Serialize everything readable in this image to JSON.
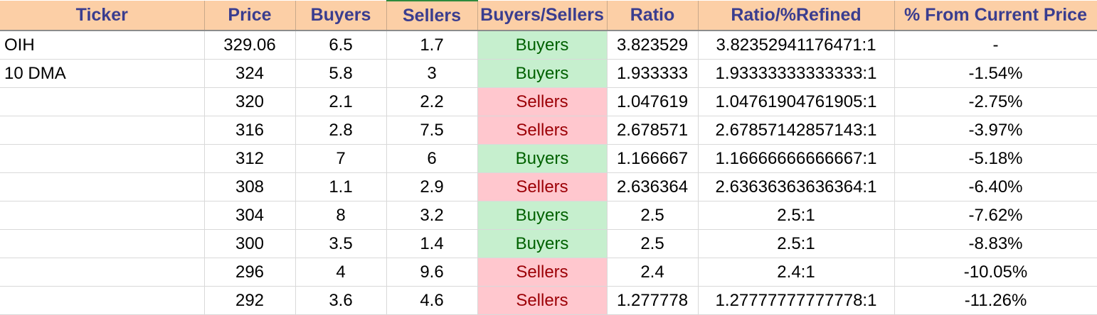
{
  "headers": [
    "Ticker",
    "Price",
    "Buyers",
    "Sellers",
    "Buyers/Sellers",
    "Ratio",
    "Ratio/%Refined",
    "% From Current Price"
  ],
  "colors": {
    "header_bg": "#fccfa6",
    "header_text": "#3a3d8f",
    "buyers_bg": "#c6efce",
    "buyers_text": "#006100",
    "sellers_bg": "#ffc7ce",
    "sellers_text": "#9c0006"
  },
  "rows": [
    {
      "ticker": "OIH",
      "price": "329.06",
      "buyers": "6.5",
      "sellers": "1.7",
      "side": "Buyers",
      "ratio": "3.823529",
      "refined": "3.82352941176471:1",
      "pct": "-"
    },
    {
      "ticker": "10 DMA",
      "price": "324",
      "buyers": "5.8",
      "sellers": "3",
      "side": "Buyers",
      "ratio": "1.933333",
      "refined": "1.93333333333333:1",
      "pct": "-1.54%"
    },
    {
      "ticker": "",
      "price": "320",
      "buyers": "2.1",
      "sellers": "2.2",
      "side": "Sellers",
      "ratio": "1.047619",
      "refined": "1.04761904761905:1",
      "pct": "-2.75%"
    },
    {
      "ticker": "",
      "price": "316",
      "buyers": "2.8",
      "sellers": "7.5",
      "side": "Sellers",
      "ratio": "2.678571",
      "refined": "2.67857142857143:1",
      "pct": "-3.97%"
    },
    {
      "ticker": "",
      "price": "312",
      "buyers": "7",
      "sellers": "6",
      "side": "Buyers",
      "ratio": "1.166667",
      "refined": "1.16666666666667:1",
      "pct": "-5.18%"
    },
    {
      "ticker": "",
      "price": "308",
      "buyers": "1.1",
      "sellers": "2.9",
      "side": "Sellers",
      "ratio": "2.636364",
      "refined": "2.63636363636364:1",
      "pct": "-6.40%"
    },
    {
      "ticker": "",
      "price": "304",
      "buyers": "8",
      "sellers": "3.2",
      "side": "Buyers",
      "ratio": "2.5",
      "refined": "2.5:1",
      "pct": "-7.62%"
    },
    {
      "ticker": "",
      "price": "300",
      "buyers": "3.5",
      "sellers": "1.4",
      "side": "Buyers",
      "ratio": "2.5",
      "refined": "2.5:1",
      "pct": "-8.83%"
    },
    {
      "ticker": "",
      "price": "296",
      "buyers": "4",
      "sellers": "9.6",
      "side": "Sellers",
      "ratio": "2.4",
      "refined": "2.4:1",
      "pct": "-10.05%"
    },
    {
      "ticker": "",
      "price": "292",
      "buyers": "3.6",
      "sellers": "4.6",
      "side": "Sellers",
      "ratio": "1.277778",
      "refined": "1.27777777777778:1",
      "pct": "-11.26%"
    }
  ]
}
